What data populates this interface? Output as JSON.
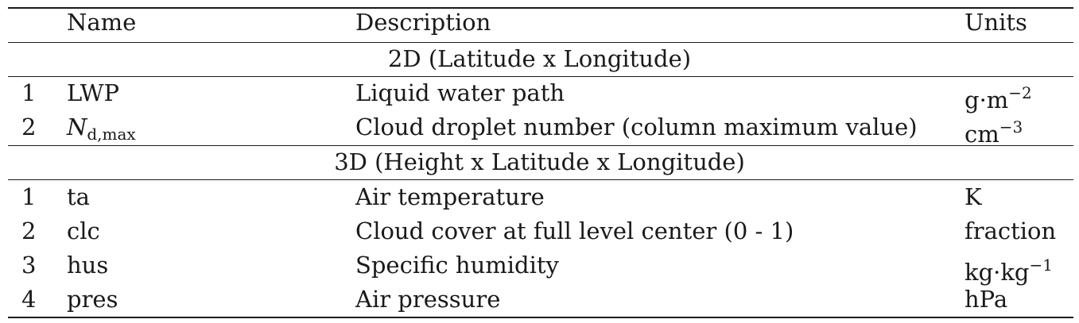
{
  "header": {
    "name": "Name",
    "description": "Description",
    "units": "Units"
  },
  "sections": [
    {
      "title": "2D (Latitude x Longitude)",
      "rows": [
        {
          "index": "1",
          "name": "LWP",
          "description": "Liquid water path",
          "unit_base": "g·m",
          "unit_exp": "−2"
        },
        {
          "index": "2",
          "name_base": "N",
          "name_sub": "d,max",
          "description": "Cloud droplet number (column maximum value)",
          "unit_base": "cm",
          "unit_exp": "−3"
        }
      ]
    },
    {
      "title": "3D (Height x Latitude x Longitude)",
      "rows": [
        {
          "index": "1",
          "name": "ta",
          "description": "Air temperature",
          "unit_base": "K"
        },
        {
          "index": "2",
          "name": "clc",
          "description": "Cloud cover at full level center (0 - 1)",
          "unit_base": "fraction"
        },
        {
          "index": "3",
          "name": "hus",
          "description": "Specific humidity",
          "unit_base": "kg·kg",
          "unit_exp": "−1"
        },
        {
          "index": "4",
          "name": "pres",
          "description": "Air pressure",
          "unit_base": "hPa"
        }
      ]
    }
  ]
}
